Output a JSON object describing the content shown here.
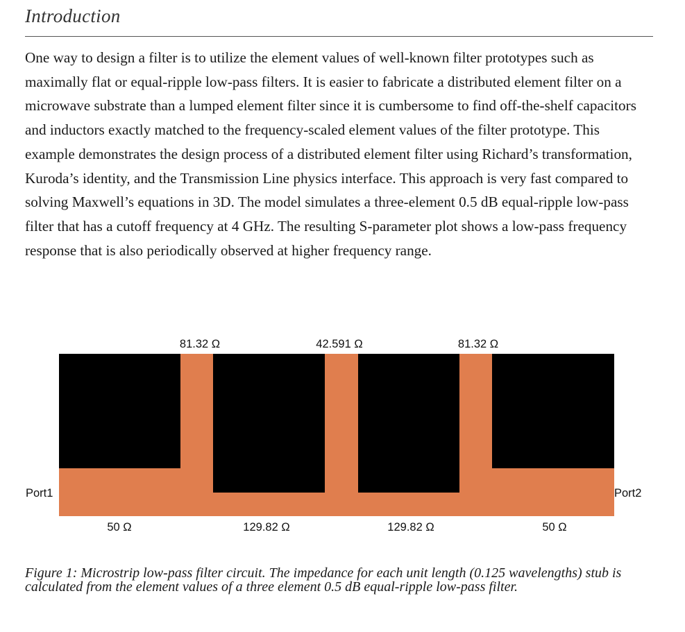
{
  "section": {
    "heading": "Introduction"
  },
  "body": {
    "paragraph": "One way to design a filter is to utilize the element values of well-known filter prototypes such as maximally flat or equal-ripple low-pass filters. It is easier to fabricate a distributed element filter on a microwave substrate than a lumped element filter since it is cumbersome to find off-the-shelf capacitors and inductors exactly matched to the frequency-scaled element values of the filter prototype. This example demonstrates the design process of a distributed element filter using Richard’s transformation, Kuroda’s identity, and the Transmission Line physics interface. This approach is very fast compared to solving Maxwell’s equations in 3D. The model simulates a three-element 0.5 dB equal-ripple low-pass filter that has a cutoff frequency at 4 GHz. The resulting S-parameter plot shows a low-pass frequency response that is also periodically observed at higher frequency range."
  },
  "figure": {
    "colors": {
      "substrate": "#000000",
      "trace": "#e07e4e"
    },
    "stub_labels": [
      "81.32 Ω",
      "42.591 Ω",
      "81.32 Ω"
    ],
    "line_labels": [
      "50 Ω",
      "129.82 Ω",
      "129.82 Ω",
      "50 Ω"
    ],
    "port_left": "Port1",
    "port_right": "Port2",
    "caption": "Figure 1: Microstrip low-pass filter circuit. The impedance for each unit length (0.125 wavelengths) stub is calculated from the element values of a three element 0.5 dB equal-ripple low-pass filter."
  }
}
